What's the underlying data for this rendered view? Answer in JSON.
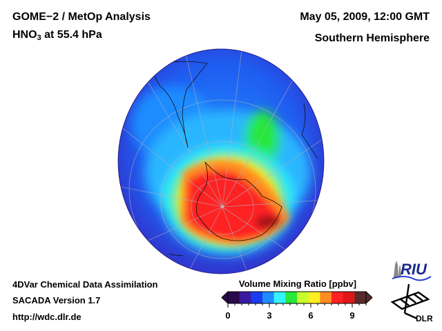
{
  "header": {
    "title": "GOME−2 / MetOp Analysis",
    "species": "HNO",
    "species_sub": "3",
    "level": " at 55.4 hPa",
    "date": "May 05, 2009, 12:00 GMT",
    "region": "Southern Hemisphere"
  },
  "footer": {
    "line1": "4DVar Chemical Data Assimilation",
    "line2": "SACADA Version 1.7",
    "line3": "http://wdc.dlr.de"
  },
  "colorbar": {
    "title": "Volume Mixing Ratio [ppbv]",
    "min": 0,
    "max": 10,
    "ticks": [
      "0",
      "3",
      "6",
      "9"
    ],
    "colors": [
      "#2a0a4a",
      "#3a1aa0",
      "#1a3cf0",
      "#1e8cff",
      "#35f2ff",
      "#28e83a",
      "#c8ff2a",
      "#ffee22",
      "#ff8c22",
      "#ff2020",
      "#e01818",
      "#5a2a2a"
    ]
  },
  "logos": {
    "riu": "RIU",
    "dlr": "DLR"
  },
  "map": {
    "projection": "orthographic south polar",
    "background_color": "#2e1fc8"
  }
}
